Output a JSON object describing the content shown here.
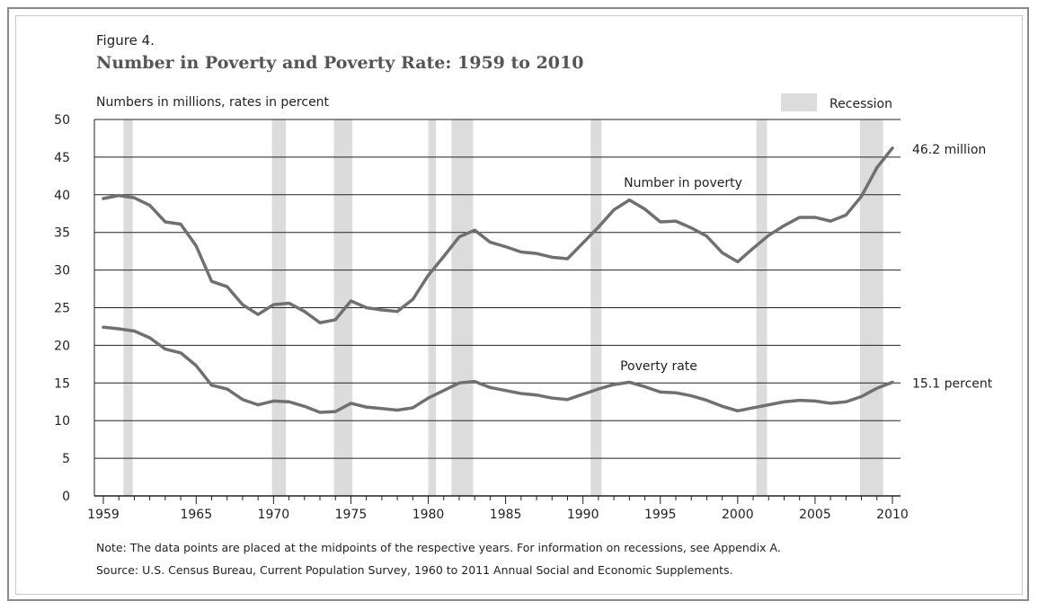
{
  "figure_label": "Figure 4.",
  "title": "Number in Poverty and Poverty Rate: 1959 to 2010",
  "units_label": "Numbers in millions, rates in percent",
  "note": "Note:  The data points are placed at the midpoints of the respective years. For information on recessions, see Appendix A.",
  "source": "Source:  U.S. Census Bureau, Current Population Survey, 1960 to 2011 Annual Social and Economic Supplements.",
  "colors": {
    "line": "#707070",
    "recession": "#dcdcdc",
    "grid": "#222222",
    "text": "#222222"
  },
  "chart_data": {
    "type": "line",
    "xlim": [
      1959,
      2010
    ],
    "ylim": [
      0,
      50
    ],
    "y_ticks": [
      0,
      5,
      10,
      15,
      20,
      25,
      30,
      35,
      40,
      45,
      50
    ],
    "x_ticks": [
      1959,
      1965,
      1970,
      1975,
      1980,
      1985,
      1990,
      1995,
      2000,
      2005,
      2010
    ],
    "grid": true,
    "legend": {
      "label": "Recession",
      "placement": "top-right"
    },
    "recessions": [
      [
        1960.3,
        1960.9
      ],
      [
        1969.9,
        1970.8
      ],
      [
        1973.9,
        1975.1
      ],
      [
        1980.0,
        1980.5
      ],
      [
        1981.5,
        1982.9
      ],
      [
        1990.5,
        1991.2
      ],
      [
        2001.2,
        2001.9
      ],
      [
        2007.9,
        2009.4
      ]
    ],
    "x": [
      1959,
      1960,
      1961,
      1962,
      1963,
      1964,
      1965,
      1966,
      1967,
      1968,
      1969,
      1970,
      1971,
      1972,
      1973,
      1974,
      1975,
      1976,
      1977,
      1978,
      1979,
      1980,
      1981,
      1982,
      1983,
      1984,
      1985,
      1986,
      1987,
      1988,
      1989,
      1990,
      1991,
      1992,
      1993,
      1994,
      1995,
      1996,
      1997,
      1998,
      1999,
      2000,
      2001,
      2002,
      2003,
      2004,
      2005,
      2006,
      2007,
      2008,
      2009,
      2010
    ],
    "series": [
      {
        "name": "Number in poverty",
        "end_label": "46.2 million",
        "values": [
          39.5,
          39.9,
          39.6,
          38.6,
          36.4,
          36.1,
          33.2,
          28.5,
          27.8,
          25.4,
          24.1,
          25.4,
          25.6,
          24.5,
          23.0,
          23.4,
          25.9,
          25.0,
          24.7,
          24.5,
          26.1,
          29.3,
          31.8,
          34.4,
          35.3,
          33.7,
          33.1,
          32.4,
          32.2,
          31.7,
          31.5,
          33.6,
          35.7,
          38.0,
          39.3,
          38.1,
          36.4,
          36.5,
          35.6,
          34.5,
          32.3,
          31.1,
          32.9,
          34.6,
          35.9,
          37.0,
          37.0,
          36.5,
          37.3,
          39.8,
          43.6,
          46.2
        ]
      },
      {
        "name": "Poverty rate",
        "end_label": "15.1 percent",
        "values": [
          22.4,
          22.2,
          21.9,
          21.0,
          19.5,
          19.0,
          17.3,
          14.7,
          14.2,
          12.8,
          12.1,
          12.6,
          12.5,
          11.9,
          11.1,
          11.2,
          12.3,
          11.8,
          11.6,
          11.4,
          11.7,
          13.0,
          14.0,
          15.0,
          15.2,
          14.4,
          14.0,
          13.6,
          13.4,
          13.0,
          12.8,
          13.5,
          14.2,
          14.8,
          15.1,
          14.5,
          13.8,
          13.7,
          13.3,
          12.7,
          11.9,
          11.3,
          11.7,
          12.1,
          12.5,
          12.7,
          12.6,
          12.3,
          12.5,
          13.2,
          14.3,
          15.1
        ]
      }
    ],
    "xlabel": "",
    "ylabel": ""
  }
}
